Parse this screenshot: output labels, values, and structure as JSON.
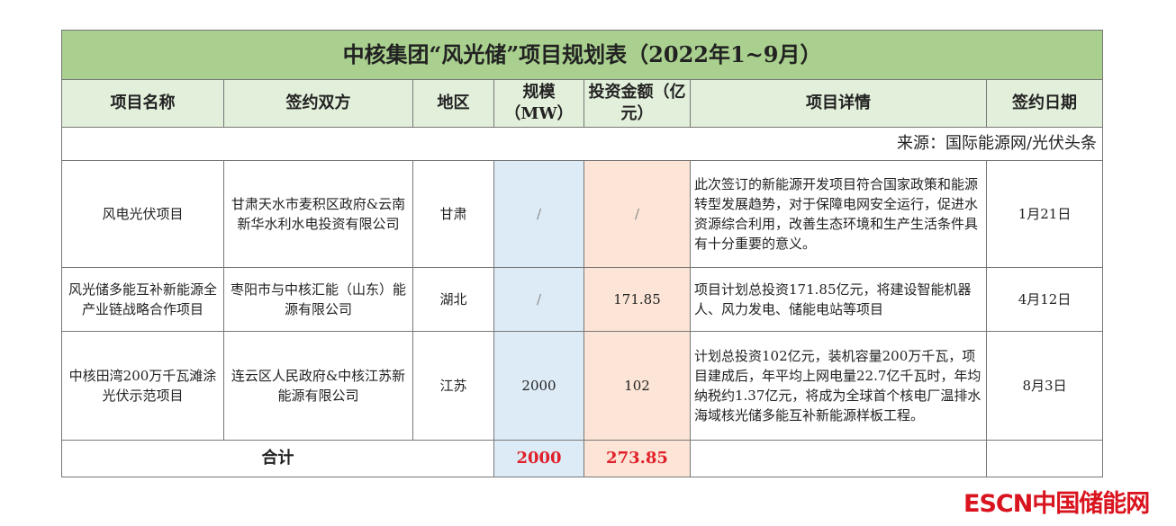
{
  "title": "中核集团“风光储”项目规划表（2022年1~9月）",
  "headers": [
    "项目名称",
    "签约双方",
    "地区",
    "规模（MW）",
    "投资金额（亿元）",
    "项目详情",
    "签约日期"
  ],
  "source": "来源：国际能源网/光伏头条",
  "rows": [
    {
      "name": "风电光伏项目",
      "parties": "甘肃天水市麦积区政府&云南新华水利水电投资有限公司",
      "region": "甘肃",
      "scale": "/",
      "invest": "/",
      "detail": "此次签订的新能源开发项目符合国家政策和能源转型发展趋势，对于保障电网安全运行，促进水资源综合利用，改善生态环境和生产生活条件具有十分重要的意义。",
      "date": "1月21日"
    },
    {
      "name": "风光储多能互补新能源全产业链战略合作项目",
      "parties": "枣阳市与中核汇能（山东）能源有限公司",
      "region": "湖北",
      "scale": "/",
      "invest": "171.85",
      "detail": "项目计划总投资171.85亿元，将建设智能机器人、风力发电、储能电站等项目",
      "date": "4月12日"
    },
    {
      "name": "中核田湾200万千瓦滩涂光伏示范项目",
      "parties": "连云区人民政府&中核江苏新能源有限公司",
      "region": "江苏",
      "scale": "2000",
      "invest": "102",
      "detail": "计划总投资102亿元，装机容量200万千瓦，项目建成后，年平均上网电量22.7亿千瓦时，年均纳税约1.37亿元，将成为全球首个核电厂温排水海域核光储多能互补新能源样板工程。",
      "date": "8月3日"
    }
  ],
  "total": {
    "label": "合计",
    "scale": "2000",
    "invest": "273.85"
  },
  "logo": "ESCN中国储能网",
  "colors": {
    "title_bg": "#a9d08e",
    "header_bg": "#e2efda",
    "scale_bg": "#ddebf7",
    "invest_bg": "#fce4d6",
    "total_text": "#e0202a"
  }
}
